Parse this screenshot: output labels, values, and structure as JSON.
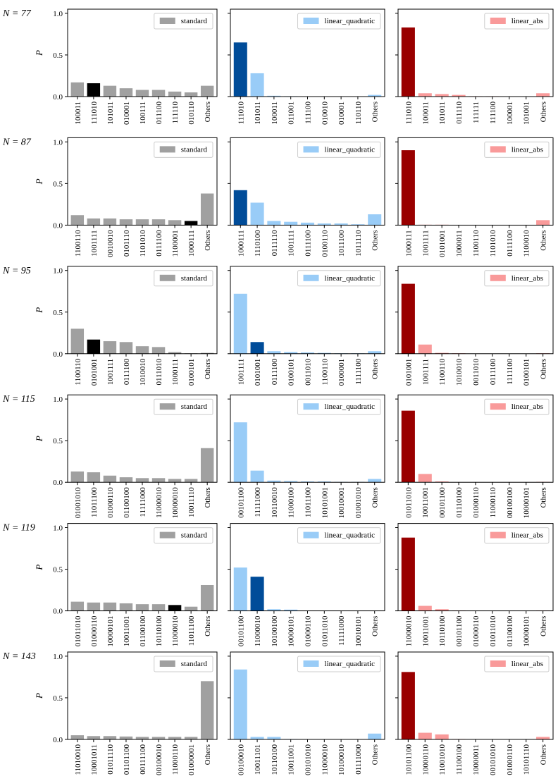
{
  "chart_data": [
    {
      "type": "bar",
      "annotation": "N = 77",
      "ylabel": "P",
      "ylim": [
        0,
        1.05
      ],
      "yticks": [
        {
          "value": 0,
          "label": "0.0"
        },
        0.5,
        {
          "value": 1,
          "label": "1.0"
        }
      ],
      "legend": "upper right",
      "categories": [
        "100011",
        "111010",
        "101011",
        "010001",
        "100111",
        "011100",
        "111110",
        "010110",
        "Others"
      ],
      "series": [
        {
          "name": "standard",
          "color": "#a0a0a0",
          "highlight": 1,
          "highlight_color": "#000000",
          "values": [
            0.17,
            0.16,
            0.13,
            0.1,
            0.08,
            0.08,
            0.06,
            0.05,
            0.13
          ]
        }
      ]
    },
    {
      "type": "bar",
      "ylim": [
        0,
        1.05
      ],
      "yticks": [
        0,
        0.5,
        1
      ],
      "ytick_labels": false,
      "legend": "upper right",
      "categories": [
        "111010",
        "101011",
        "100011",
        "011001",
        "111100",
        "010010",
        "010001",
        "110110",
        "Others"
      ],
      "series": [
        {
          "name": "linear_quadratic",
          "color": "#99ccf7",
          "highlight": 0,
          "highlight_color": "#004c99",
          "values": [
            0.65,
            0.28,
            0.01,
            0.005,
            0,
            0,
            0,
            0,
            0.02
          ]
        }
      ]
    },
    {
      "type": "bar",
      "ylim": [
        0,
        1.05
      ],
      "yticks": [
        0,
        0.5,
        1
      ],
      "ytick_labels": false,
      "legend": "upper right",
      "categories": [
        "111010",
        "100011",
        "101011",
        "011110",
        "111111",
        "111100",
        "100001",
        "101001",
        "Others"
      ],
      "series": [
        {
          "name": "linear_abs",
          "color": "#f99a9a",
          "highlight": 0,
          "highlight_color": "#990000",
          "values": [
            0.83,
            0.04,
            0.03,
            0.02,
            0.005,
            0.005,
            0,
            0,
            0.04
          ]
        }
      ]
    },
    {
      "type": "bar",
      "annotation": "N = 87",
      "ylabel": "P",
      "ylim": [
        0,
        1.05
      ],
      "yticks": [
        {
          "value": 0,
          "label": "0.0"
        },
        0.5,
        {
          "value": 1,
          "label": "1.0"
        }
      ],
      "legend": "upper right",
      "categories": [
        "1100110",
        "1001111",
        "0010010",
        "0101110",
        "1101010",
        "0111100",
        "1100001",
        "1000111",
        "Others"
      ],
      "series": [
        {
          "name": "standard",
          "color": "#a0a0a0",
          "highlight": 7,
          "highlight_color": "#000000",
          "values": [
            0.12,
            0.08,
            0.08,
            0.07,
            0.07,
            0.07,
            0.06,
            0.05,
            0.38
          ]
        }
      ]
    },
    {
      "type": "bar",
      "ylim": [
        0,
        1.05
      ],
      "yticks": [
        0,
        0.5,
        1
      ],
      "ytick_labels": false,
      "legend": "upper right",
      "categories": [
        "1000111",
        "1110100",
        "0111110",
        "1001111",
        "0111100",
        "0100110",
        "1011100",
        "1011110",
        "Others"
      ],
      "series": [
        {
          "name": "linear_quadratic",
          "color": "#99ccf7",
          "highlight": 0,
          "highlight_color": "#004c99",
          "values": [
            0.42,
            0.27,
            0.05,
            0.04,
            0.03,
            0.02,
            0.02,
            0.01,
            0.13
          ]
        }
      ]
    },
    {
      "type": "bar",
      "ylim": [
        0,
        1.05
      ],
      "yticks": [
        0,
        0.5,
        1
      ],
      "ytick_labels": false,
      "legend": "upper right",
      "categories": [
        "1000111",
        "1001111",
        "0101001",
        "1000011",
        "1100110",
        "1101010",
        "0111100",
        "1100010",
        "Others"
      ],
      "series": [
        {
          "name": "linear_abs",
          "color": "#f99a9a",
          "highlight": 0,
          "highlight_color": "#990000",
          "values": [
            0.9,
            0.005,
            0.005,
            0,
            0,
            0,
            0,
            0,
            0.06
          ]
        }
      ]
    },
    {
      "type": "bar",
      "annotation": "N = 95",
      "ylabel": "P",
      "ylim": [
        0,
        1.05
      ],
      "yticks": [
        {
          "value": 0,
          "label": "0.0"
        },
        0.5,
        {
          "value": 1,
          "label": "1.0"
        }
      ],
      "legend": "upper right",
      "categories": [
        "1100110",
        "0101001",
        "1001111",
        "0111100",
        "1010010",
        "0111010",
        "1000111",
        "0100101",
        "Others"
      ],
      "series": [
        {
          "name": "standard",
          "color": "#a0a0a0",
          "highlight": 1,
          "highlight_color": "#000000",
          "values": [
            0.3,
            0.17,
            0.15,
            0.14,
            0.09,
            0.08,
            0.02,
            0.005,
            0.01
          ]
        }
      ]
    },
    {
      "type": "bar",
      "ylim": [
        0,
        1.05
      ],
      "yticks": [
        0,
        0.5,
        1
      ],
      "ytick_labels": false,
      "legend": "upper right",
      "categories": [
        "1001111",
        "0101001",
        "0111100",
        "0100101",
        "0011010",
        "1100110",
        "0100001",
        "1111100",
        "Others"
      ],
      "series": [
        {
          "name": "linear_quadratic",
          "color": "#99ccf7",
          "highlight": 1,
          "highlight_color": "#004c99",
          "values": [
            0.72,
            0.14,
            0.03,
            0.02,
            0.015,
            0.01,
            0.005,
            0.005,
            0.03
          ]
        }
      ]
    },
    {
      "type": "bar",
      "ylim": [
        0,
        1.05
      ],
      "yticks": [
        0,
        0.5,
        1
      ],
      "ytick_labels": false,
      "legend": "upper right",
      "categories": [
        "0101001",
        "1001111",
        "1100110",
        "1010010",
        "0011010",
        "0111100",
        "1111100",
        "0100101",
        "Others"
      ],
      "series": [
        {
          "name": "linear_abs",
          "color": "#f99a9a",
          "highlight": 0,
          "highlight_color": "#990000",
          "values": [
            0.84,
            0.11,
            0.01,
            0.005,
            0,
            0,
            0,
            0,
            0.005
          ]
        }
      ]
    },
    {
      "type": "bar",
      "annotation": "N = 115",
      "ylabel": "P",
      "ylim": [
        0,
        1.05
      ],
      "yticks": [
        {
          "value": 0,
          "label": "0.0"
        },
        0.5,
        {
          "value": 1,
          "label": "1.0"
        }
      ],
      "legend": "upper right",
      "categories": [
        "01001010",
        "11011100",
        "01000110",
        "01100100",
        "11111000",
        "11000010",
        "10000010",
        "10011110",
        "Others"
      ],
      "series": [
        {
          "name": "standard",
          "color": "#a0a0a0",
          "values": [
            0.13,
            0.12,
            0.08,
            0.06,
            0.05,
            0.05,
            0.04,
            0.04,
            0.41
          ]
        }
      ]
    },
    {
      "type": "bar",
      "ylim": [
        0,
        1.05
      ],
      "yticks": [
        0,
        0.5,
        1
      ],
      "ytick_labels": false,
      "legend": "upper right",
      "categories": [
        "00101100",
        "11111000",
        "10110010",
        "11000100",
        "11011100",
        "10101001",
        "10010001",
        "01001010",
        "Others"
      ],
      "series": [
        {
          "name": "linear_quadratic",
          "color": "#99ccf7",
          "values": [
            0.72,
            0.14,
            0.02,
            0.015,
            0.01,
            0.01,
            0.005,
            0.005,
            0.04
          ]
        }
      ]
    },
    {
      "type": "bar",
      "ylim": [
        0,
        1.05
      ],
      "yticks": [
        0,
        0.5,
        1
      ],
      "ytick_labels": false,
      "legend": "upper right",
      "categories": [
        "01011010",
        "10011001",
        "00101100",
        "01110100",
        "01000110",
        "11000110",
        "00100100",
        "10000101",
        "Others"
      ],
      "series": [
        {
          "name": "linear_abs",
          "color": "#f99a9a",
          "highlight": 0,
          "highlight_color": "#990000",
          "values": [
            0.86,
            0.1,
            0.01,
            0,
            0,
            0,
            0,
            0,
            0.005
          ]
        }
      ]
    },
    {
      "type": "bar",
      "annotation": "N = 119",
      "ylabel": "P",
      "ylim": [
        0,
        1.05
      ],
      "yticks": [
        {
          "value": 0,
          "label": "0.0"
        },
        0.5,
        {
          "value": 1,
          "label": "1.0"
        }
      ],
      "legend": "upper right",
      "categories": [
        "01011010",
        "01000110",
        "10000101",
        "10011001",
        "01100100",
        "10110100",
        "11000010",
        "11011100",
        "Others"
      ],
      "series": [
        {
          "name": "standard",
          "color": "#a0a0a0",
          "highlight": 6,
          "highlight_color": "#000000",
          "values": [
            0.11,
            0.1,
            0.1,
            0.09,
            0.08,
            0.08,
            0.07,
            0.05,
            0.31
          ]
        }
      ]
    },
    {
      "type": "bar",
      "ylim": [
        0,
        1.05
      ],
      "yticks": [
        0,
        0.5,
        1
      ],
      "ytick_labels": false,
      "legend": "upper right",
      "categories": [
        "00101100",
        "11000010",
        "10100100",
        "10000101",
        "01000110",
        "01011010",
        "11111000",
        "10010101",
        "Others"
      ],
      "series": [
        {
          "name": "linear_quadratic",
          "color": "#99ccf7",
          "highlight": 1,
          "highlight_color": "#004c99",
          "values": [
            0.52,
            0.41,
            0.02,
            0.015,
            0,
            0,
            0,
            0,
            0
          ]
        }
      ]
    },
    {
      "type": "bar",
      "ylim": [
        0,
        1.05
      ],
      "yticks": [
        0,
        0.5,
        1
      ],
      "ytick_labels": false,
      "legend": "upper right",
      "categories": [
        "11000010",
        "10011001",
        "10110100",
        "00101100",
        "01000110",
        "01011010",
        "01100100",
        "10000101",
        "Others"
      ],
      "series": [
        {
          "name": "linear_abs",
          "color": "#f99a9a",
          "highlight": 0,
          "highlight_color": "#990000",
          "values": [
            0.88,
            0.06,
            0.02,
            0.005,
            0,
            0,
            0,
            0,
            0.005
          ]
        }
      ]
    },
    {
      "type": "bar",
      "annotation": "N = 143",
      "ylabel": "P",
      "ylim": [
        0,
        1.05
      ],
      "yticks": [
        {
          "value": 0,
          "label": "0.0"
        },
        0.5,
        {
          "value": 1,
          "label": "1.0"
        }
      ],
      "legend": "upper right",
      "categories": [
        "11010010",
        "10001011",
        "01011110",
        "01101100",
        "00111100",
        "00100010",
        "11000110",
        "01000001",
        "Others"
      ],
      "series": [
        {
          "name": "standard",
          "color": "#a0a0a0",
          "values": [
            0.05,
            0.04,
            0.04,
            0.035,
            0.03,
            0.03,
            0.03,
            0.03,
            0.7
          ]
        }
      ]
    },
    {
      "type": "bar",
      "ylim": [
        0,
        1.05
      ],
      "yticks": [
        0,
        0.5,
        1
      ],
      "ytick_labels": false,
      "legend": "upper right",
      "categories": [
        "00100010",
        "10011101",
        "10110100",
        "10011001",
        "00101010",
        "11000010",
        "10100010",
        "01111000",
        "Others"
      ],
      "series": [
        {
          "name": "linear_quadratic",
          "color": "#99ccf7",
          "values": [
            0.84,
            0.03,
            0.03,
            0.005,
            0,
            0,
            0,
            0,
            0.07
          ]
        }
      ]
    },
    {
      "type": "bar",
      "ylim": [
        0,
        1.05
      ],
      "yticks": [
        0,
        0.5,
        1
      ],
      "ytick_labels": false,
      "legend": "upper right",
      "categories": [
        "10101100",
        "10000110",
        "11001010",
        "11100100",
        "10000011",
        "00101010",
        "01000110",
        "10101110",
        "Others"
      ],
      "series": [
        {
          "name": "linear_abs",
          "color": "#f99a9a",
          "highlight": 0,
          "highlight_color": "#990000",
          "values": [
            0.81,
            0.08,
            0.06,
            0.005,
            0,
            0,
            0,
            0,
            0.03
          ]
        }
      ]
    }
  ]
}
